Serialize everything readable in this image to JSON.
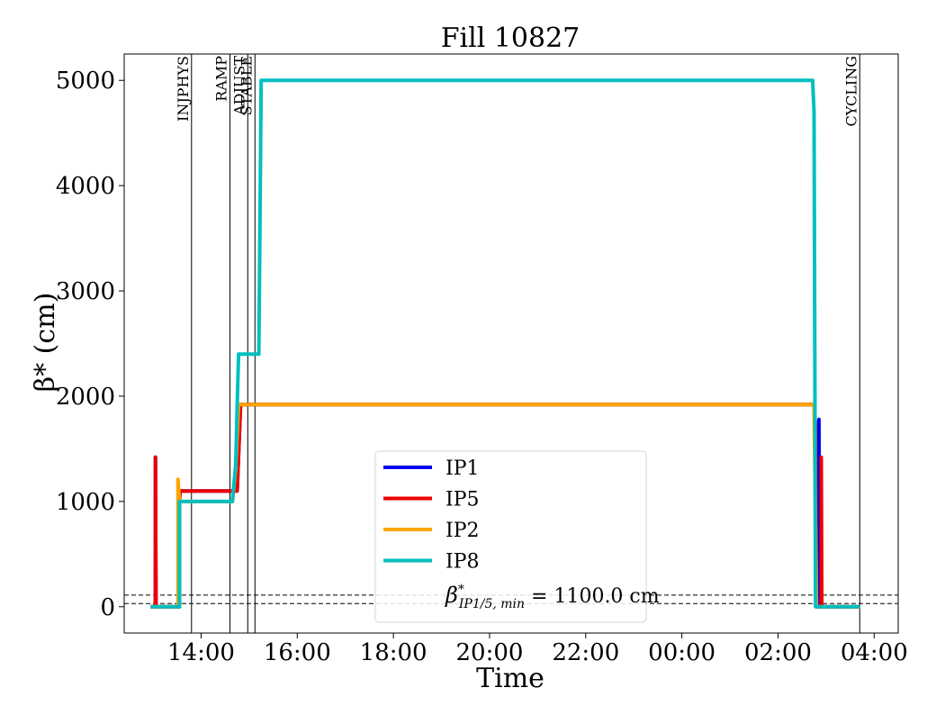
{
  "chart_data": {
    "type": "line",
    "title": "Fill 10827",
    "xlabel": "Time",
    "ylabel": "β* (cm)",
    "x_unit": "hours (12:00 reference, values past 24 are next day)",
    "xlim": [
      12.4,
      28.5
    ],
    "ylim": [
      -250,
      5250
    ],
    "x_ticks": [
      {
        "value": 14,
        "label": "14:00"
      },
      {
        "value": 16,
        "label": "16:00"
      },
      {
        "value": 18,
        "label": "18:00"
      },
      {
        "value": 20,
        "label": "20:00"
      },
      {
        "value": 22,
        "label": "22:00"
      },
      {
        "value": 24,
        "label": "00:00"
      },
      {
        "value": 26,
        "label": "02:00"
      },
      {
        "value": 28,
        "label": "04:00"
      }
    ],
    "y_ticks": [
      0,
      1000,
      2000,
      3000,
      4000,
      5000
    ],
    "grid": false,
    "legend_position": "lower-center",
    "mode_lines": [
      {
        "x": 13.8,
        "label": "INJPHYS"
      },
      {
        "x": 14.6,
        "label": "RAMP"
      },
      {
        "x": 14.97,
        "label": "ADJUST"
      },
      {
        "x": 15.12,
        "label": "STABLE"
      },
      {
        "x": 27.7,
        "label": "CYCLING"
      }
    ],
    "hlines": [
      {
        "y": 110,
        "style": "dashed"
      },
      {
        "y": 30,
        "style": "dashed"
      }
    ],
    "legend_extra": "β*IP1/5, min = 1100.0 cm",
    "series": [
      {
        "name": "IP1",
        "color": "#0000ee",
        "points": [
          [
            12.95,
            0
          ],
          [
            13.05,
            0
          ],
          [
            13.05,
            1420
          ],
          [
            13.06,
            0
          ],
          [
            13.55,
            0
          ],
          [
            13.55,
            1000
          ],
          [
            13.56,
            1100
          ],
          [
            14.6,
            1100
          ],
          [
            14.75,
            1100
          ],
          [
            14.82,
            1920
          ],
          [
            26.75,
            1920
          ],
          [
            26.78,
            1700
          ],
          [
            26.8,
            0
          ],
          [
            26.85,
            0
          ],
          [
            26.85,
            1780
          ],
          [
            26.86,
            0
          ],
          [
            27.7,
            0
          ]
        ]
      },
      {
        "name": "IP5",
        "color": "#ee0000",
        "points": [
          [
            12.95,
            0
          ],
          [
            13.05,
            0
          ],
          [
            13.05,
            1420
          ],
          [
            13.06,
            0
          ],
          [
            13.55,
            0
          ],
          [
            13.55,
            1000
          ],
          [
            13.56,
            1100
          ],
          [
            14.6,
            1100
          ],
          [
            14.75,
            1100
          ],
          [
            14.82,
            1920
          ],
          [
            26.75,
            1920
          ],
          [
            26.78,
            1700
          ],
          [
            26.8,
            0
          ],
          [
            26.9,
            0
          ],
          [
            26.9,
            1420
          ],
          [
            26.91,
            0
          ],
          [
            27.7,
            0
          ]
        ]
      },
      {
        "name": "IP2",
        "color": "#ffa500",
        "points": [
          [
            12.95,
            0
          ],
          [
            13.52,
            0
          ],
          [
            13.52,
            1210
          ],
          [
            13.55,
            1000
          ],
          [
            14.65,
            1000
          ],
          [
            14.72,
            1300
          ],
          [
            14.78,
            1920
          ],
          [
            26.75,
            1920
          ],
          [
            26.8,
            0
          ],
          [
            27.7,
            0
          ]
        ]
      },
      {
        "name": "IP8",
        "color": "#00bfbf",
        "points": [
          [
            12.95,
            0
          ],
          [
            13.55,
            0
          ],
          [
            13.55,
            1000
          ],
          [
            14.65,
            1000
          ],
          [
            14.72,
            1350
          ],
          [
            14.75,
            1900
          ],
          [
            14.78,
            2400
          ],
          [
            15.2,
            2400
          ],
          [
            15.25,
            5000
          ],
          [
            26.72,
            5000
          ],
          [
            26.75,
            4700
          ],
          [
            26.77,
            1680
          ],
          [
            26.78,
            0
          ],
          [
            27.7,
            0
          ]
        ]
      }
    ]
  }
}
